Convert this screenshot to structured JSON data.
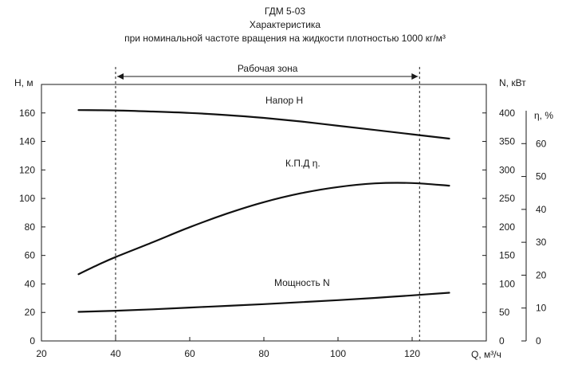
{
  "chart_data": {
    "type": "line",
    "title": "ГДМ 5-03",
    "subtitle": "Характеристика",
    "subtitle2": "при номинальной  частоте  вращения  на жидкости плотностью  1000  кг/м³",
    "xlabel": "Q, м³/ч",
    "xlim": [
      20,
      140
    ],
    "xticks": [
      20,
      40,
      60,
      80,
      100,
      120
    ],
    "axes": {
      "H": {
        "label": "Н, м",
        "lim": [
          0,
          180
        ],
        "ticks": [
          0,
          20,
          40,
          60,
          80,
          100,
          120,
          140,
          160
        ]
      },
      "N": {
        "label": "N, кВт",
        "lim": [
          0,
          450
        ],
        "ticks": [
          0,
          50,
          100,
          150,
          200,
          250,
          300,
          350,
          400
        ]
      },
      "eta": {
        "label": "η, %",
        "lim": [
          0,
          70
        ],
        "ticks": [
          0,
          10,
          20,
          30,
          40,
          50,
          60
        ]
      }
    },
    "working_zone": {
      "label": "Рабочая  зона",
      "q_min": 40,
      "q_max": 122
    },
    "series": [
      {
        "name": "Напор  Н",
        "axis": "H",
        "x": [
          30,
          40,
          50,
          60,
          70,
          80,
          90,
          100,
          110,
          120,
          130
        ],
        "y": [
          162,
          161.8,
          161,
          160,
          158.5,
          156.5,
          154,
          151,
          148,
          145,
          142
        ]
      },
      {
        "name": "К.П.Д    η.",
        "axis": "eta",
        "x": [
          30,
          35,
          40,
          50,
          60,
          70,
          80,
          90,
          100,
          110,
          120,
          130
        ],
        "y": [
          20.3,
          23,
          25.5,
          30,
          34.6,
          38.7,
          42.2,
          44.9,
          46.8,
          47.9,
          48,
          47.2
        ]
      },
      {
        "name": "Мощность   N",
        "axis": "N",
        "x": [
          30,
          40,
          50,
          60,
          70,
          80,
          90,
          100,
          110,
          120,
          130
        ],
        "y": [
          51,
          53,
          55.5,
          58.5,
          61.5,
          64.5,
          68,
          71.5,
          75.5,
          80,
          84.5
        ]
      }
    ]
  }
}
